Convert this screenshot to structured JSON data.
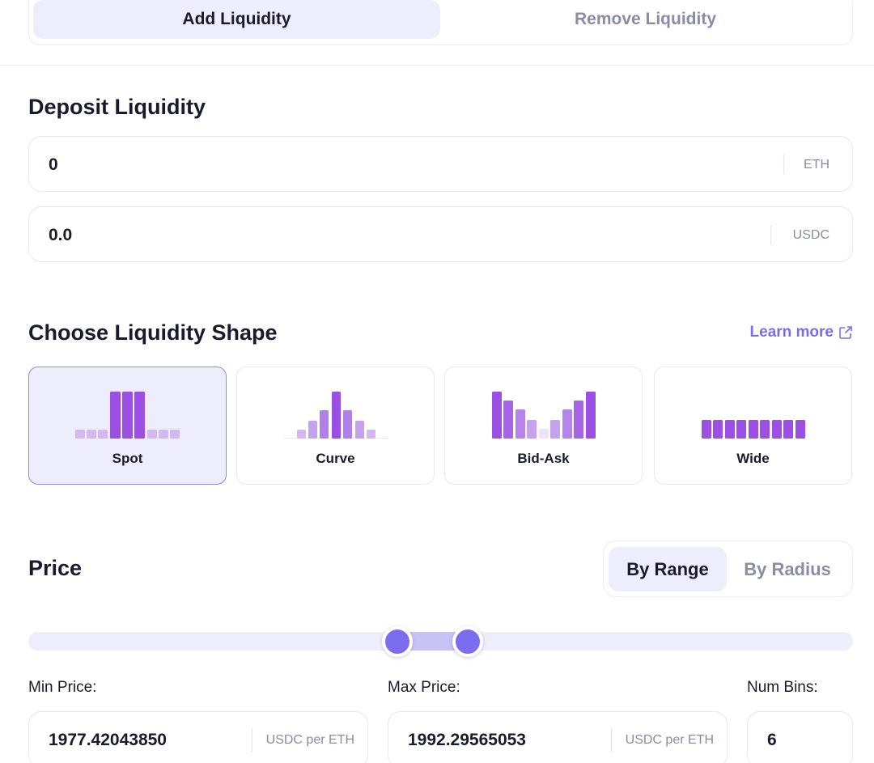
{
  "tabs": [
    {
      "label": "Add Liquidity",
      "active": true
    },
    {
      "label": "Remove Liquidity",
      "active": false
    }
  ],
  "deposit": {
    "title": "Deposit Liquidity",
    "inputs": [
      {
        "value": "0",
        "unit": "ETH"
      },
      {
        "value": "0.0",
        "unit": "USDC"
      }
    ]
  },
  "shape": {
    "title": "Choose Liquidity Shape",
    "learn_more": "Learn more",
    "learn_more_icon": "external-link-icon",
    "options": [
      {
        "label": "Spot",
        "selected": true
      },
      {
        "label": "Curve",
        "selected": false
      },
      {
        "label": "Bid-Ask",
        "selected": false
      },
      {
        "label": "Wide",
        "selected": false
      }
    ]
  },
  "price": {
    "title": "Price",
    "modes": [
      {
        "label": "By Range",
        "active": true
      },
      {
        "label": "By Radius",
        "active": false
      }
    ],
    "min_label": "Min Price:",
    "max_label": "Max Price:",
    "bins_label": "Num Bins:",
    "min_value": "1977.42043850",
    "max_value": "1992.29565053",
    "unit": "USDC per ETH",
    "num_bins": "6"
  },
  "colors": {
    "accent": "#7b6cf0",
    "bar_strong": "#9b4fe3",
    "bar_soft": "#d3b8f2"
  }
}
